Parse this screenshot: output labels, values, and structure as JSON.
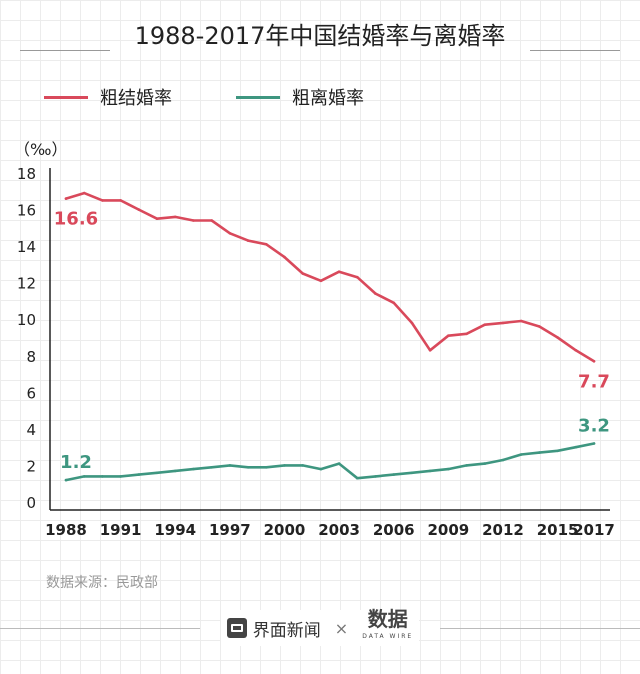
{
  "header": {
    "title": "1988-2017年中国结婚率与离婚率"
  },
  "legend": [
    {
      "label": "粗结婚率",
      "color": "#d9495b"
    },
    {
      "label": "粗离婚率",
      "color": "#3e9680"
    }
  ],
  "unit": "（‰）",
  "source": "数据来源：民政部",
  "footer": {
    "brand": "界面新闻",
    "separator": "×",
    "logo": "数据",
    "logo_sub": "DATA WIRE"
  },
  "chart_data": {
    "type": "line",
    "title": "1988-2017年中国结婚率与离婚率",
    "xlabel": "",
    "ylabel": "‰",
    "ylim": [
      0,
      18
    ],
    "yticks": [
      0,
      2,
      4,
      6,
      8,
      10,
      12,
      14,
      16,
      18
    ],
    "x": [
      1988,
      1989,
      1990,
      1991,
      1992,
      1993,
      1994,
      1995,
      1996,
      1997,
      1998,
      1999,
      2000,
      2001,
      2002,
      2003,
      2004,
      2005,
      2006,
      2007,
      2008,
      2009,
      2010,
      2011,
      2012,
      2013,
      2014,
      2015,
      2016,
      2017
    ],
    "xtick_labels": [
      "1988",
      "1991",
      "1994",
      "1997",
      "2000",
      "2003",
      "2006",
      "2009",
      "2012",
      "2015",
      "2017"
    ],
    "series": [
      {
        "name": "粗结婚率",
        "color": "#d9495b",
        "values": [
          16.6,
          16.9,
          16.5,
          16.5,
          16.0,
          15.5,
          15.6,
          15.4,
          15.4,
          14.7,
          14.3,
          14.1,
          13.4,
          12.5,
          12.1,
          12.6,
          12.3,
          11.4,
          10.9,
          9.8,
          8.3,
          9.1,
          9.2,
          9.7,
          9.8,
          9.9,
          9.6,
          9.0,
          8.3,
          7.7
        ],
        "annotations": [
          {
            "x": 1988,
            "text": "16.6",
            "position": "below"
          },
          {
            "x": 2017,
            "text": "7.7",
            "position": "below"
          }
        ]
      },
      {
        "name": "粗离婚率",
        "color": "#3e9680",
        "values": [
          1.2,
          1.4,
          1.4,
          1.4,
          1.5,
          1.6,
          1.7,
          1.8,
          1.9,
          2.0,
          1.9,
          1.9,
          2.0,
          2.0,
          1.8,
          2.1,
          1.3,
          1.4,
          1.5,
          1.6,
          1.7,
          1.8,
          2.0,
          2.1,
          2.3,
          2.6,
          2.7,
          2.8,
          3.0,
          3.2
        ],
        "annotations": [
          {
            "x": 1988,
            "text": "1.2",
            "position": "above"
          },
          {
            "x": 2017,
            "text": "3.2",
            "position": "above"
          }
        ]
      }
    ]
  }
}
